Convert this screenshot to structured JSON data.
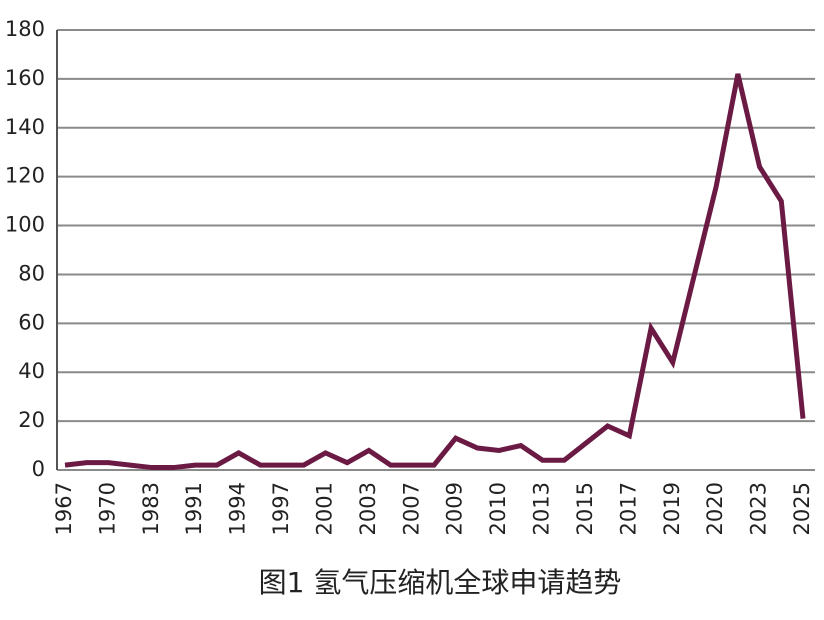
{
  "chart_data": {
    "type": "line",
    "title": "图1 氢气压缩机全球申请趋势",
    "categories": [
      "1967",
      null,
      "1970",
      null,
      "1983",
      null,
      "1991",
      null,
      "1994",
      null,
      "1997",
      null,
      "2001",
      null,
      "2003",
      null,
      "2007",
      null,
      "2009",
      null,
      "2010",
      null,
      "2013",
      null,
      "2015",
      null,
      "2017",
      null,
      "2019",
      null,
      "2020",
      null,
      "2023",
      null,
      "2025"
    ],
    "series": [
      {
        "color": "#6b1a44",
        "values": [
          2,
          3,
          3,
          2,
          1,
          1,
          2,
          2,
          7,
          2,
          2,
          2,
          7,
          3,
          8,
          2,
          2,
          2,
          13,
          9,
          8,
          10,
          4,
          4,
          11,
          18,
          14,
          58,
          44,
          80,
          116,
          162,
          124,
          110,
          21
        ]
      }
    ],
    "ylim": [
      0,
      180
    ],
    "yticks": [
      0,
      20,
      40,
      60,
      80,
      100,
      120,
      140,
      160,
      180
    ],
    "grid": true
  }
}
